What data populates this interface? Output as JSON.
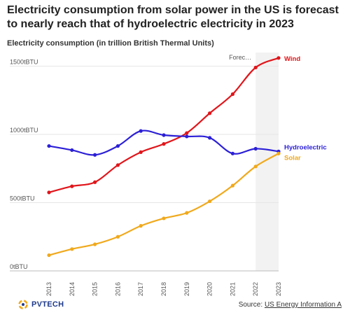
{
  "title": "Electricity consumption from solar power in the US is forecast to nearly reach that of hydroelectric electricity in 2023",
  "subtitle": "Electricity consumption (in trillion British Thermal Units)",
  "logo_text": "PVTECH",
  "source": {
    "prefix": "Source: ",
    "link_text": "US Energy Information A"
  },
  "colors": {
    "wind": "#e0161b",
    "hydroelectric": "#2c20d6",
    "solar": "#f0a91c",
    "grid": "#e6e6e6",
    "forecast_band": "#f2f2f2"
  },
  "chart_data": {
    "type": "line",
    "title": "Electricity consumption from solar power in the US is forecast to nearly reach that of hydroelectric electricity in 2023",
    "ylabel": "Electricity consumption (in trillion British Thermal Units)",
    "x": [
      "2013",
      "2014",
      "2015",
      "2016",
      "2017",
      "2018",
      "2019",
      "2020",
      "2021",
      "2022",
      "2023"
    ],
    "y_ticks": [
      "0tBTU",
      "500tBTU",
      "1000tBTU",
      "1500tBTU"
    ],
    "ylim": [
      0,
      1600
    ],
    "forecast_label": "Forec…",
    "forecast_from": "2022",
    "series": [
      {
        "name": "Wind",
        "key": "wind",
        "values": [
          575,
          620,
          650,
          775,
          870,
          930,
          1010,
          1155,
          1295,
          1490,
          1560
        ]
      },
      {
        "name": "Hydroelectric",
        "key": "hydroelectric",
        "values": [
          915,
          885,
          850,
          915,
          1025,
          995,
          985,
          975,
          860,
          895,
          875
        ]
      },
      {
        "name": "Solar",
        "key": "solar",
        "values": [
          115,
          160,
          195,
          250,
          330,
          385,
          425,
          510,
          625,
          765,
          860
        ]
      }
    ],
    "legend": "inline-right",
    "grid": true
  }
}
